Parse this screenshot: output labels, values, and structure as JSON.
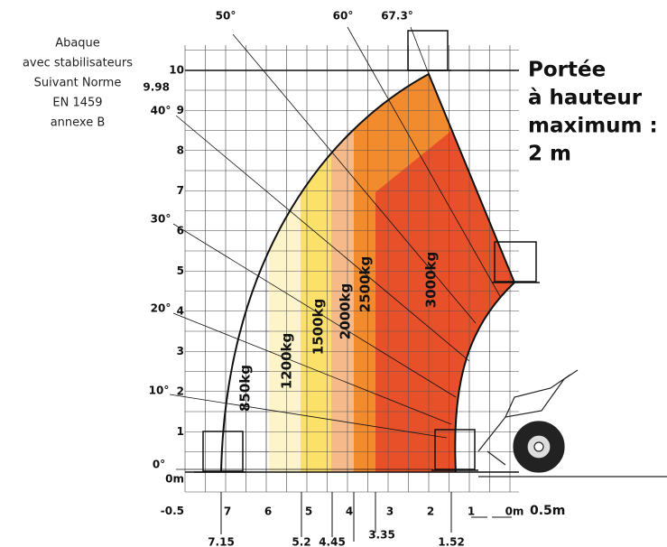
{
  "notes": [
    "Abaque",
    "avec stabilisateurs",
    "Suivant Norme",
    "EN 1459",
    "annexe B"
  ],
  "title": [
    "Portée",
    "à hauteur",
    "maximum :",
    "2 m"
  ],
  "y_labels": [
    "10",
    "9",
    "8",
    "7",
    "6",
    "5",
    "4",
    "3",
    "2",
    "1",
    "0m",
    "-0.5"
  ],
  "max_height": "9.98",
  "x_labels": [
    "7",
    "6",
    "5",
    "4",
    "3",
    "2",
    "1",
    "0m"
  ],
  "scale": "0.5m",
  "reach_marks": [
    "7.15",
    "5.2",
    "4.45",
    "3.35",
    "1.52"
  ],
  "angles": [
    "50°",
    "60°",
    "67.3°",
    "40°",
    "30°",
    "20°",
    "10°",
    "0°"
  ],
  "zones": [
    "850kg",
    "1200kg",
    "1500kg",
    "2000kg",
    "2500kg",
    "3000kg"
  ]
}
